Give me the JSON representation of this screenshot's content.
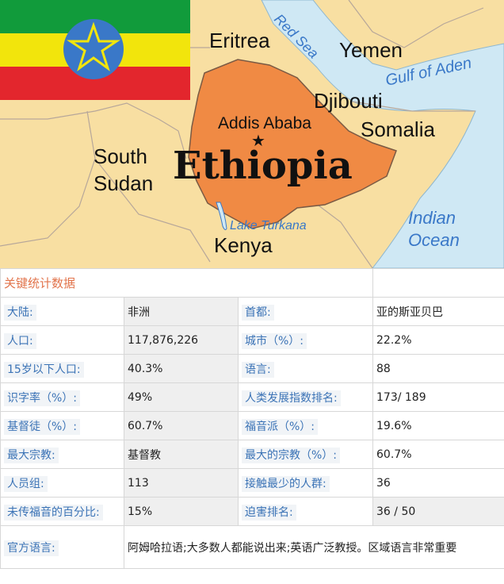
{
  "map": {
    "country": "Ethiopia",
    "capital": "Addis Ababa",
    "neighbors": {
      "eritrea": "Eritrea",
      "yemen": "Yemen",
      "djibouti": "Djibouti",
      "somalia": "Somalia",
      "south_sudan_1": "South",
      "south_sudan_2": "Sudan",
      "kenya": "Kenya"
    },
    "water": {
      "red_sea": "Red Sea",
      "gulf": "Gulf of Aden",
      "lake": "Lake Turkana",
      "ocean_1": "Indian",
      "ocean_2": "Ocean"
    },
    "colors": {
      "land": "#f8dfa2",
      "sea": "#cfe8f4",
      "ethiopia": "#f08a44",
      "flag_green": "#119b3b",
      "flag_yellow": "#f2e50c",
      "flag_red": "#e3262d",
      "emblem": "#3a78c8",
      "label_blue": "#3a78c8"
    }
  },
  "stats": {
    "title": "关键统计数据",
    "rows": [
      {
        "l1": "大陆:",
        "v1": "非洲",
        "l2": "首都:",
        "v2": "亚的斯亚贝巴"
      },
      {
        "l1": "人口:",
        "v1": "117,876,226",
        "l2": "城市（%）:",
        "v2": "22.2%"
      },
      {
        "l1": "15岁以下人口:",
        "v1": "40.3%",
        "l2": "语言:",
        "v2": "88"
      },
      {
        "l1": "识字率（%）:",
        "v1": "49%",
        "l2": "人类发展指数排名:",
        "v2": "173/ 189"
      },
      {
        "l1": "基督徒（%）:",
        "v1": "60.7%",
        "l2": "福音派（%）:",
        "v2": "19.6%"
      },
      {
        "l1": "最大宗教:",
        "v1": "基督教",
        "l2": "最大的宗教（%）:",
        "v2": "60.7%"
      },
      {
        "l1": "人员组:",
        "v1": "113",
        "l2": "接触最少的人群:",
        "v2": "36"
      },
      {
        "l1": "未传福音的百分比:",
        "v1": "15%",
        "l2": "迫害排名:",
        "v2": "36 / 50"
      }
    ],
    "official_label": "官方语言:",
    "official_value": "阿姆哈拉语;大多数人都能说出来;英语广泛教授。区域语言非常重要"
  }
}
